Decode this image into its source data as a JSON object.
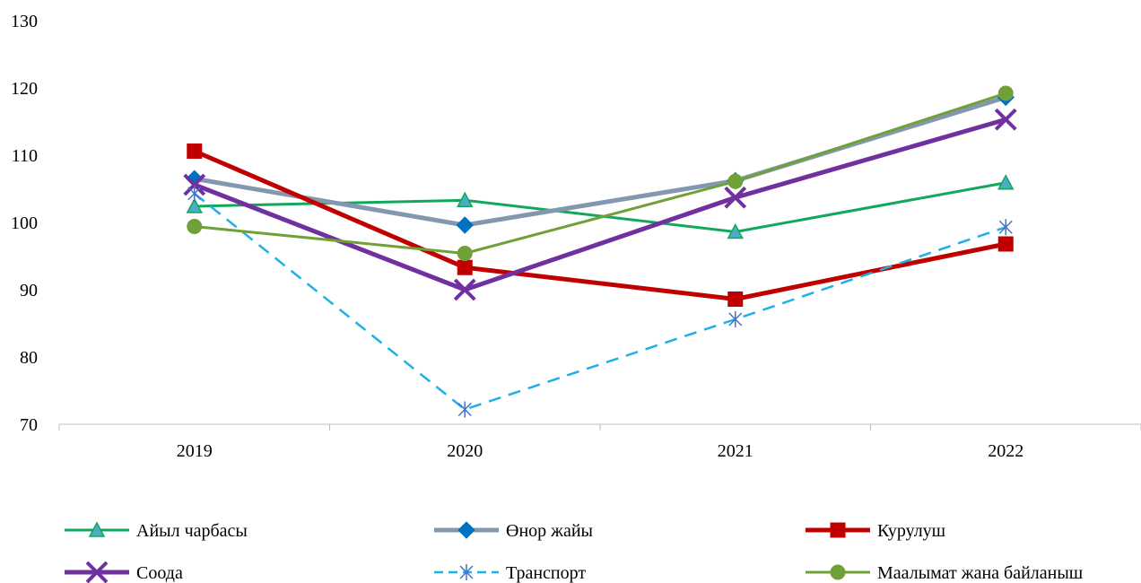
{
  "chart_data": {
    "type": "line",
    "title": "",
    "xlabel": "",
    "ylabel": "",
    "categories": [
      "2019",
      "2020",
      "2021",
      "2022"
    ],
    "ylim": [
      70,
      130
    ],
    "yticks": [
      70,
      80,
      90,
      100,
      110,
      120,
      130
    ],
    "grid": false,
    "legend_position": "bottom",
    "series": [
      {
        "name": "Айыл чарбасы",
        "values": [
          102.4,
          103.3,
          98.6,
          105.9
        ],
        "color": "#12a85c",
        "marker": "triangle",
        "marker_fill": "#4aacc5",
        "line_width": 3,
        "dashed": false
      },
      {
        "name": "Өнор жайы",
        "values": [
          106.5,
          99.6,
          106.2,
          118.6
        ],
        "color": "#8497b0",
        "marker": "diamond",
        "marker_fill": "#0070c0",
        "line_width": 5,
        "dashed": false
      },
      {
        "name": "Курулуш",
        "values": [
          110.6,
          93.3,
          88.6,
          96.8
        ],
        "color": "#c00000",
        "marker": "square",
        "marker_fill": "#c00000",
        "line_width": 5,
        "dashed": false
      },
      {
        "name": "Соода",
        "values": [
          105.6,
          90.0,
          103.7,
          115.3
        ],
        "color": "#7030a0",
        "marker": "x",
        "marker_fill": "#7030a0",
        "line_width": 5,
        "dashed": false
      },
      {
        "name": "Транспорт",
        "values": [
          104.3,
          72.2,
          85.6,
          99.3
        ],
        "color": "#1fb0e6",
        "marker": "star",
        "marker_fill": "#4472c4",
        "line_width": 2.5,
        "dashed": true
      },
      {
        "name": "Маалымат жана байланыш",
        "values": [
          99.4,
          95.4,
          106.1,
          119.2
        ],
        "color": "#70a038",
        "marker": "circle",
        "marker_fill": "#70a038",
        "line_width": 3,
        "dashed": false
      }
    ]
  }
}
